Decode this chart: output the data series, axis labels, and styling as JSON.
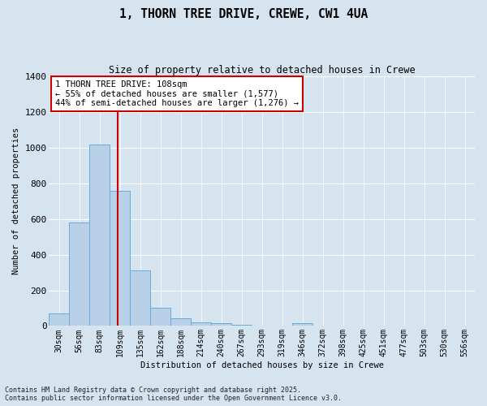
{
  "title_line1": "1, THORN TREE DRIVE, CREWE, CW1 4UA",
  "title_line2": "Size of property relative to detached houses in Crewe",
  "xlabel": "Distribution of detached houses by size in Crewe",
  "ylabel": "Number of detached properties",
  "bar_color": "#b8d0e8",
  "bar_edge_color": "#6aaad4",
  "background_color": "#d6e4f0",
  "fig_color": "#d6e4f0",
  "grid_color": "#ffffff",
  "categories": [
    "30sqm",
    "56sqm",
    "83sqm",
    "109sqm",
    "135sqm",
    "162sqm",
    "188sqm",
    "214sqm",
    "240sqm",
    "267sqm",
    "293sqm",
    "319sqm",
    "346sqm",
    "372sqm",
    "398sqm",
    "425sqm",
    "451sqm",
    "477sqm",
    "503sqm",
    "530sqm",
    "556sqm"
  ],
  "values": [
    70,
    580,
    1020,
    760,
    310,
    100,
    45,
    22,
    15,
    8,
    0,
    0,
    15,
    0,
    0,
    0,
    0,
    0,
    0,
    0,
    0
  ],
  "ylim": [
    0,
    1400
  ],
  "yticks": [
    0,
    200,
    400,
    600,
    800,
    1000,
    1200,
    1400
  ],
  "vline_x": 2.88,
  "annotation_text_line1": "1 THORN TREE DRIVE: 108sqm",
  "annotation_text_line2": "← 55% of detached houses are smaller (1,577)",
  "annotation_text_line3": "44% of semi-detached houses are larger (1,276) →",
  "annotation_box_color": "#ffffff",
  "annotation_box_edge": "#cc0000",
  "vline_color": "#cc0000",
  "footer_line1": "Contains HM Land Registry data © Crown copyright and database right 2025.",
  "footer_line2": "Contains public sector information licensed under the Open Government Licence v3.0."
}
